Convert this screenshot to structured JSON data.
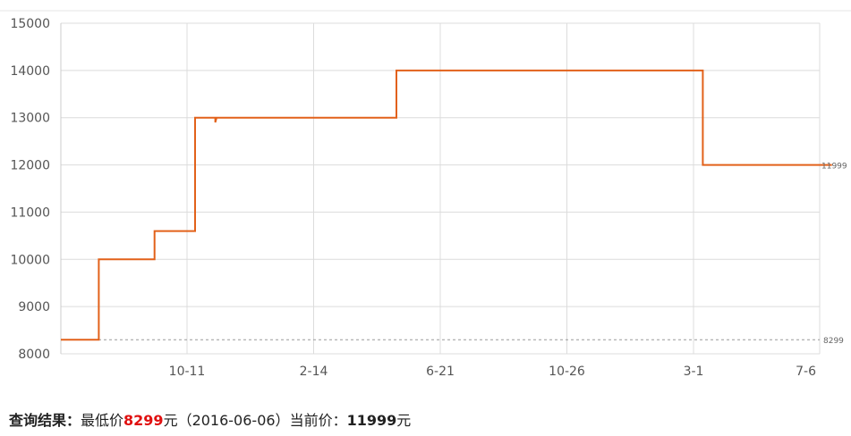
{
  "colors": {
    "line": "#e2611a",
    "grid": "#dcdcdc",
    "axis": "#cccccc",
    "min_line": "#999999",
    "low_price": "#e01010"
  },
  "chart_data": {
    "type": "line",
    "step": true,
    "ylim": [
      8000,
      15000
    ],
    "y_ticks": [
      "15000",
      "14000",
      "13000",
      "12000",
      "11000",
      "10000",
      "9000",
      "8000"
    ],
    "x_ticks": [
      "10-11",
      "2-14",
      "6-21",
      "10-26",
      "3-1",
      "7-6"
    ],
    "series": [
      {
        "points": [
          {
            "x": 0.0,
            "y": 8299
          },
          {
            "x": 0.3,
            "y": 8299
          },
          {
            "x": 0.3,
            "y": 9999
          },
          {
            "x": 0.74,
            "y": 9999
          },
          {
            "x": 0.74,
            "y": 10599
          },
          {
            "x": 1.06,
            "y": 10599
          },
          {
            "x": 1.06,
            "y": 12999
          },
          {
            "x": 1.22,
            "y": 12999
          },
          {
            "x": 1.22,
            "y": 12900
          },
          {
            "x": 1.23,
            "y": 12999
          },
          {
            "x": 2.65,
            "y": 12999
          },
          {
            "x": 2.65,
            "y": 13999
          },
          {
            "x": 5.07,
            "y": 13999
          },
          {
            "x": 5.07,
            "y": 11999
          },
          {
            "x": 6.09,
            "y": 11999
          }
        ]
      }
    ],
    "x_range": [
      0,
      6.09
    ],
    "reference_lines": [
      {
        "value": 8299,
        "label": "8299",
        "style": "dashed"
      }
    ],
    "end_label": "11999",
    "grid": true
  },
  "result": {
    "label": "查询结果：",
    "low_prefix": "最低价",
    "low_price": "8299",
    "low_suffix": "元（2016-06-06）",
    "current_prefix": "当前价：",
    "current_price": "11999",
    "current_suffix": "元"
  }
}
